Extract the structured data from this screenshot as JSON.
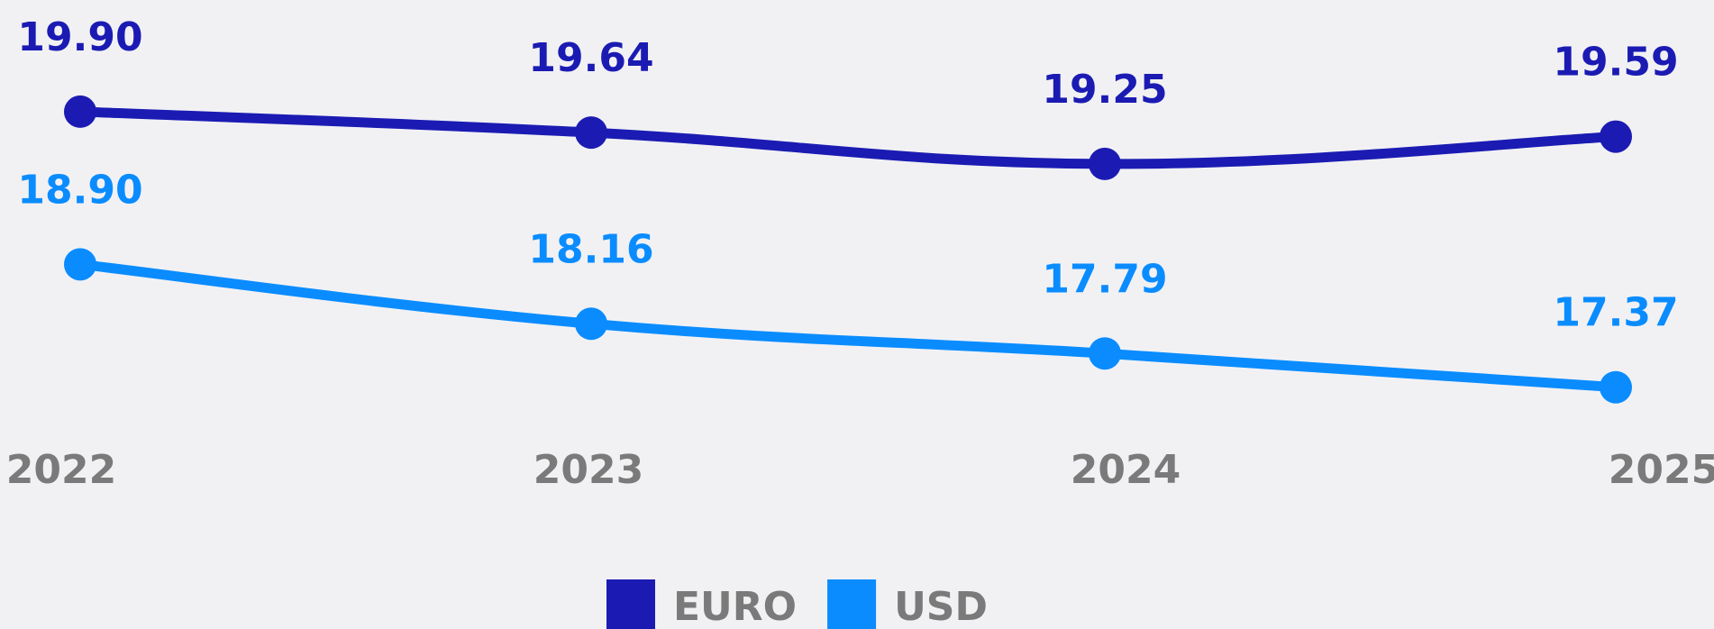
{
  "chart_data": {
    "type": "line",
    "categories": [
      "2022",
      "2023",
      "2024",
      "2025"
    ],
    "series": [
      {
        "name": "EURO",
        "color": "#1b1bb3",
        "values": [
          19.9,
          19.64,
          19.25,
          19.59
        ],
        "value_labels": [
          "19.90",
          "19.64",
          "19.25",
          "19.59"
        ]
      },
      {
        "name": "USD",
        "color": "#0a8cff",
        "axis": "y2",
        "values": [
          18.9,
          18.16,
          17.79,
          17.37
        ],
        "value_labels": [
          "18.90",
          "18.16",
          "17.79",
          "17.37"
        ]
      }
    ],
    "ylim": [
      15.85,
      21.29
    ],
    "y2lim": [
      16.75,
      22.19
    ],
    "grid": false,
    "legend": "bottom"
  }
}
